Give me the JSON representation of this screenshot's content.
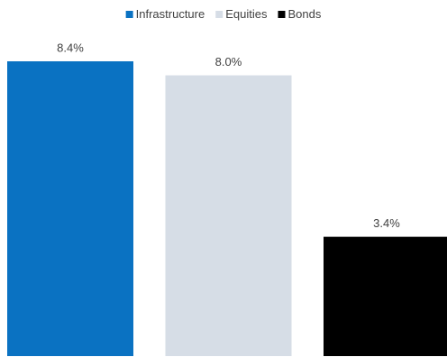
{
  "chart_data": {
    "type": "bar",
    "series": [
      {
        "name": "Infrastructure",
        "color": "#0a72c2",
        "values": [
          8.4
        ],
        "value_labels": [
          "8.4%"
        ]
      },
      {
        "name": "Equities",
        "color": "#d6dde6",
        "values": [
          8.0
        ],
        "value_labels": [
          "8.0%"
        ]
      },
      {
        "name": "Bonds",
        "color": "#000000",
        "values": [
          3.4
        ],
        "value_labels": [
          "3.4%"
        ]
      }
    ]
  }
}
